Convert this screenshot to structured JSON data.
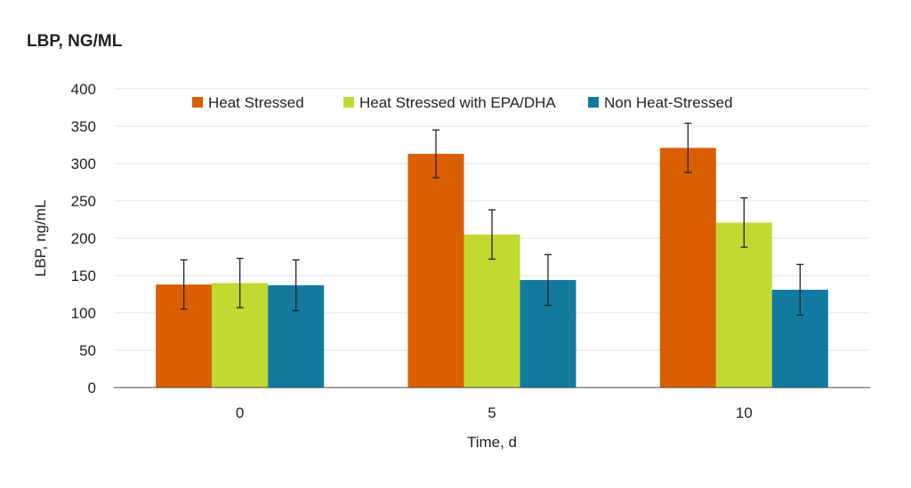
{
  "chart_data": {
    "type": "bar",
    "title": "LBP, NG/ML",
    "xlabel": "Time, d",
    "ylabel": "LBP, ng/mL",
    "ylim": [
      0,
      400
    ],
    "yticks": [
      0,
      50,
      100,
      150,
      200,
      250,
      300,
      350,
      400
    ],
    "grid": true,
    "legend_placement": "top-right",
    "categories": [
      "0",
      "5",
      "10"
    ],
    "series": [
      {
        "name": "Heat Stressed",
        "color": "#d95f02",
        "values": [
          138,
          313,
          321
        ],
        "errors": [
          33,
          32,
          33
        ]
      },
      {
        "name": "Heat Stressed with EPA/DHA",
        "color": "#c2d932",
        "values": [
          140,
          205,
          221
        ],
        "errors": [
          33,
          33,
          33
        ]
      },
      {
        "name": "Non Heat-Stressed",
        "color": "#117a9e",
        "values": [
          137,
          144,
          131
        ],
        "errors": [
          34,
          34,
          34
        ]
      }
    ]
  }
}
